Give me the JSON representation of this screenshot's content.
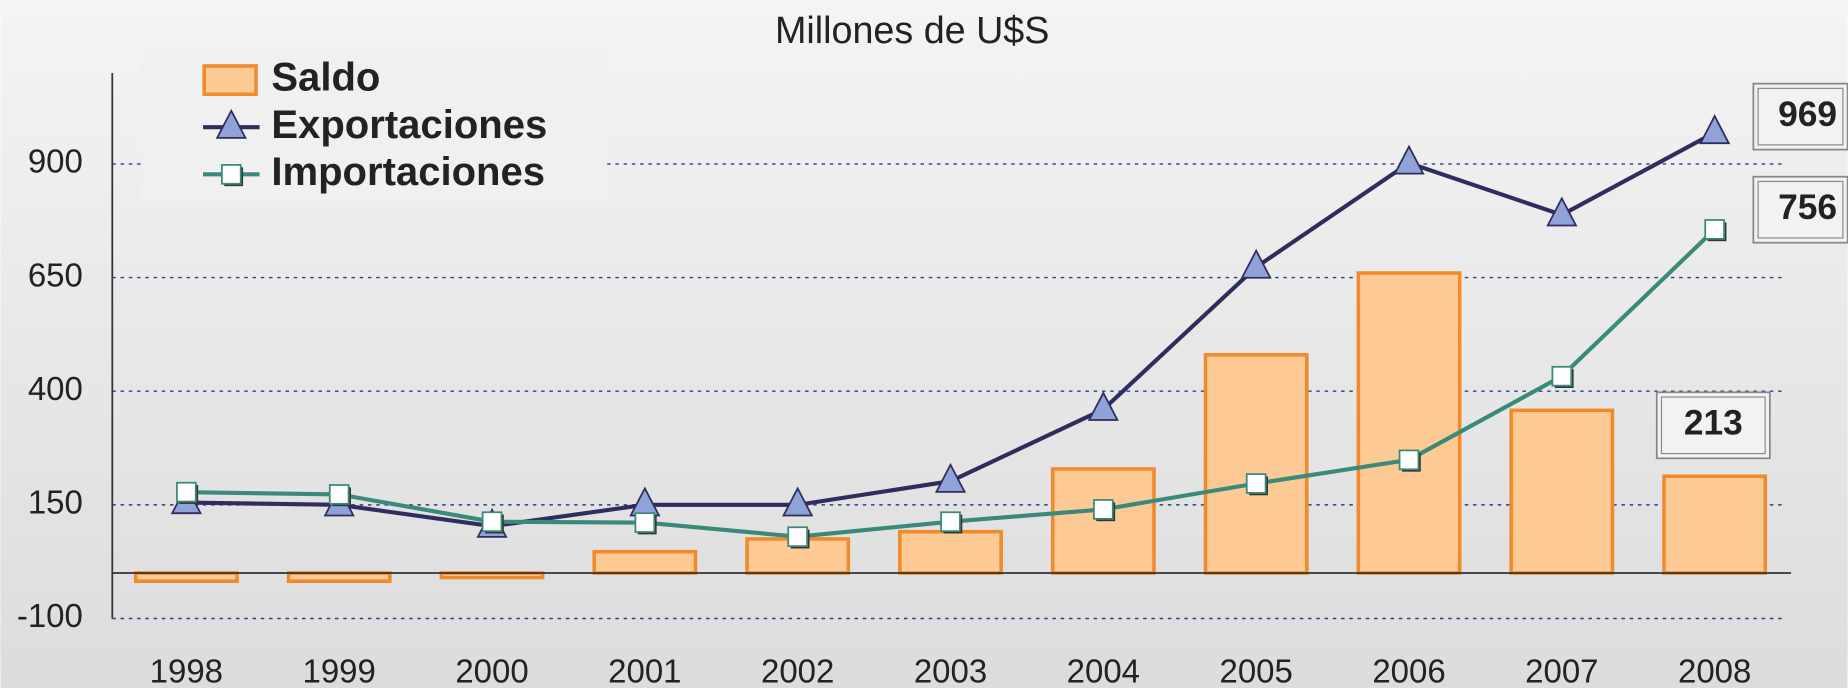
{
  "chart_data": {
    "type": "bar",
    "title": "Millones de U$S",
    "categories": [
      "1998",
      "1999",
      "2000",
      "2001",
      "2002",
      "2003",
      "2004",
      "2005",
      "2006",
      "2007",
      "2008"
    ],
    "series": [
      {
        "name": "Saldo",
        "type": "bar",
        "color": "#fdc994",
        "stroke": "#f08a2a",
        "values": [
          -18,
          -18,
          -10,
          47,
          75,
          91,
          229,
          480,
          660,
          358,
          213
        ]
      },
      {
        "name": "Exportaciones",
        "type": "line",
        "marker": "triangle",
        "color": "#2e2d5e",
        "marker_color": "#8fa3d9",
        "values": [
          155,
          150,
          103,
          150,
          150,
          202,
          360,
          673,
          902,
          788,
          969
        ]
      },
      {
        "name": "Importaciones",
        "type": "line",
        "marker": "square",
        "color": "#3a8a7a",
        "marker_color": "#ffffff",
        "values": [
          178,
          173,
          113,
          111,
          80,
          113,
          140,
          197,
          249,
          433,
          756
        ]
      }
    ],
    "ylim": [
      -100,
      1100
    ],
    "yticks": [
      -100,
      150,
      400,
      650,
      900
    ],
    "grid": true,
    "legend": "top-left"
  }
}
